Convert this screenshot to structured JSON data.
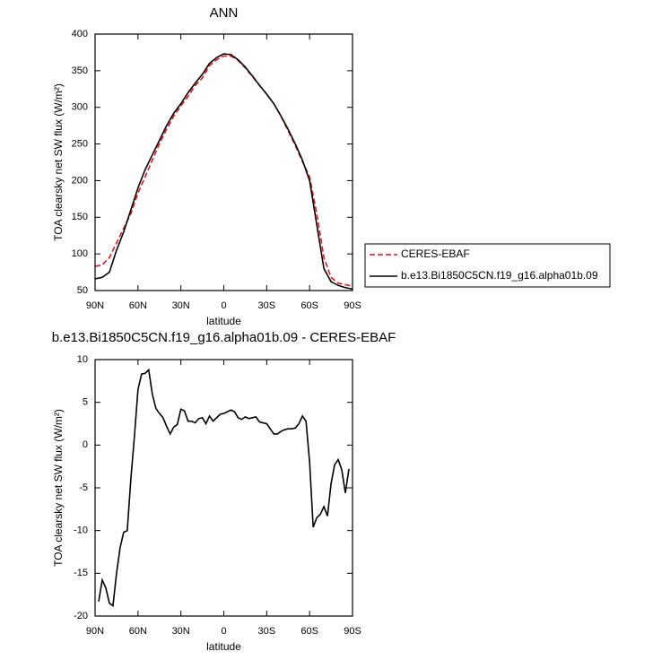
{
  "chart_data": [
    {
      "type": "line",
      "title": "ANN",
      "xlabel": "latitude",
      "ylabel": "TOA clearsky net SW flux (W/m²)",
      "x": [
        90,
        85,
        80,
        75,
        70,
        65,
        60,
        55,
        50,
        45,
        40,
        35,
        30,
        25,
        20,
        15,
        10,
        5,
        0,
        -5,
        -10,
        -15,
        -20,
        -25,
        -30,
        -35,
        -40,
        -45,
        -50,
        -55,
        -60,
        -65,
        -70,
        -75,
        -80,
        -85,
        -90
      ],
      "series": [
        {
          "name": "CERES-EBAF",
          "color": "#e8141c",
          "dashed": true,
          "values": [
            83,
            85,
            95,
            115,
            135,
            155,
            183,
            205,
            228,
            250,
            270,
            288,
            302,
            315,
            330,
            340,
            357,
            365,
            370,
            370,
            364,
            354,
            342,
            330,
            318,
            305,
            288,
            268,
            248,
            226,
            205,
            155,
            95,
            68,
            60,
            58,
            56
          ]
        },
        {
          "name": "b.e13.Bi1850C5CN.f19_g16.alpha01b.09",
          "color": "#000000",
          "dashed": false,
          "values": [
            66,
            68,
            75,
            105,
            130,
            160,
            190,
            215,
            235,
            255,
            275,
            292,
            305,
            320,
            333,
            345,
            360,
            368,
            373,
            372,
            365,
            355,
            343,
            330,
            318,
            305,
            288,
            270,
            250,
            228,
            200,
            140,
            80,
            62,
            57,
            54,
            52
          ]
        }
      ],
      "xlim": [
        90,
        -90
      ],
      "xticks": [
        {
          "value": 90,
          "label": "90N"
        },
        {
          "value": 60,
          "label": "60N"
        },
        {
          "value": 30,
          "label": "30N"
        },
        0,
        {
          "value": -30,
          "label": "30S"
        },
        {
          "value": -60,
          "label": "60S"
        },
        {
          "value": -90,
          "label": "90S"
        }
      ],
      "ylim": [
        50,
        400
      ],
      "yticks": [
        50,
        100,
        150,
        200,
        250,
        300,
        350,
        400
      ],
      "legend": "right"
    },
    {
      "type": "line",
      "title": "b.e13.Bi1850C5CN.f19_g16.alpha01b.09 - CERES-EBAF",
      "xlabel": "latitude",
      "ylabel": "TOA clearsky net SW flux (W/m²)",
      "x": [
        87.5,
        85,
        82.5,
        80,
        77.5,
        75,
        72.5,
        70,
        67.5,
        65,
        62.5,
        60,
        57.5,
        55,
        52.5,
        50,
        47.5,
        45,
        42.5,
        40,
        37.5,
        35,
        32.5,
        30,
        27.5,
        25,
        22.5,
        20,
        17.5,
        15,
        12.5,
        10,
        7.5,
        5,
        2.5,
        0,
        -2.5,
        -5,
        -7.5,
        -10,
        -12.5,
        -15,
        -17.5,
        -20,
        -22.5,
        -25,
        -27.5,
        -30,
        -32.5,
        -35,
        -37.5,
        -40,
        -42.5,
        -45,
        -47.5,
        -50,
        -52.5,
        -55,
        -57.5,
        -60,
        -62.5,
        -65,
        -67.5,
        -70,
        -72.5,
        -75,
        -77.5,
        -80,
        -82.5,
        -85,
        -87.5
      ],
      "values": [
        -18.3,
        -15.8,
        -16.7,
        -18.5,
        -18.8,
        -15,
        -12,
        -10.2,
        -10,
        -4,
        1,
        6.5,
        8.3,
        8.4,
        8.8,
        6,
        4.3,
        3.7,
        3.2,
        2.2,
        1.3,
        2.1,
        2.4,
        4.2,
        4,
        2.8,
        2.8,
        2.6,
        3.1,
        3.2,
        2.5,
        3.4,
        2.8,
        3.2,
        3.6,
        3.7,
        3.9,
        4.1,
        3.9,
        3.2,
        3.0,
        3.3,
        3.1,
        3.2,
        3.3,
        2.7,
        2.6,
        2.5,
        1.9,
        1.3,
        1.3,
        1.6,
        1.8,
        1.9,
        1.9,
        2.0,
        2.5,
        3.4,
        2.8,
        -2,
        -9.6,
        -8.5,
        -8.1,
        -7.2,
        -8.3,
        -4.5,
        -2.3,
        -1.7,
        -2.9,
        -5.6,
        -2.8
      ],
      "color": "#000000",
      "xlim": [
        90,
        -90
      ],
      "xticks": [
        {
          "value": 90,
          "label": "90N"
        },
        {
          "value": 60,
          "label": "60N"
        },
        {
          "value": 30,
          "label": "30N"
        },
        0,
        {
          "value": -30,
          "label": "30S"
        },
        {
          "value": -60,
          "label": "60S"
        },
        {
          "value": -90,
          "label": "90S"
        }
      ],
      "ylim": [
        -20,
        10
      ],
      "yticks": [
        -20,
        -15,
        -10,
        -5,
        0,
        5,
        10
      ]
    }
  ]
}
